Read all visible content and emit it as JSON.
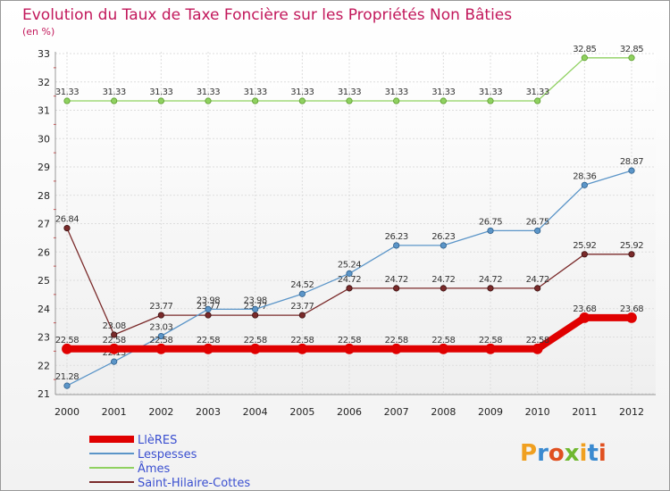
{
  "chart_data": {
    "type": "line",
    "title": "Evolution du Taux de Taxe Foncière sur les Propriétés Non Bâties",
    "subtitle": "(en %)",
    "xlabel": "",
    "ylabel": "",
    "x": [
      2000,
      2001,
      2002,
      2003,
      2004,
      2005,
      2006,
      2007,
      2008,
      2009,
      2010,
      2011,
      2012
    ],
    "ylim": [
      21,
      33
    ],
    "yticks": [
      21,
      22,
      23,
      24,
      25,
      26,
      27,
      28,
      29,
      30,
      31,
      32,
      33
    ],
    "grid": true,
    "legend_position": "bottom-left",
    "series": [
      {
        "name": "LlèRES",
        "color": "#e00000",
        "values": [
          22.58,
          22.58,
          22.58,
          22.58,
          22.58,
          22.58,
          22.58,
          22.58,
          22.58,
          22.58,
          22.58,
          23.68,
          23.68
        ],
        "labels": [
          "22.58",
          "22.58",
          "22.58",
          "22.58",
          "22.58",
          "22.58",
          "22.58",
          "22.58",
          "22.58",
          "22.58",
          "22.58",
          "23.68",
          "23.68"
        ]
      },
      {
        "name": "Lespesses",
        "color": "#5b95c8",
        "values": [
          21.28,
          22.13,
          23.03,
          23.98,
          23.98,
          24.52,
          25.24,
          26.23,
          26.23,
          26.75,
          26.75,
          28.36,
          28.87
        ],
        "labels": [
          "21.28",
          "22.13",
          "23.03",
          "23.98",
          "23.98",
          "24.52",
          "25.24",
          "26.23",
          "26.23",
          "26.75",
          "26.75",
          "28.36",
          "28.87"
        ]
      },
      {
        "name": "Âmes",
        "color": "#8fd160",
        "values": [
          31.33,
          31.33,
          31.33,
          31.33,
          31.33,
          31.33,
          31.33,
          31.33,
          31.33,
          31.33,
          31.33,
          32.85,
          32.85
        ],
        "labels": [
          "31.33",
          "31.33",
          "31.33",
          "31.33",
          "31.33",
          "31.33",
          "31.33",
          "31.33",
          "31.33",
          "31.33",
          "31.33",
          "32.85",
          "32.85"
        ]
      },
      {
        "name": "Saint-Hilaire-Cottes",
        "color": "#7a2a2a",
        "values": [
          26.84,
          23.08,
          23.77,
          23.77,
          23.77,
          23.77,
          24.72,
          24.72,
          24.72,
          24.72,
          24.72,
          25.92,
          25.92
        ],
        "labels": [
          "26.84",
          "23.08",
          "23.77",
          "23.77",
          "23.77",
          "23.77",
          "24.72",
          "24.72",
          "24.72",
          "24.72",
          "24.72",
          "25.92",
          "25.92"
        ]
      }
    ]
  },
  "branding": {
    "logo_text": "Proxiti",
    "logo_colors": [
      "#f0a020",
      "#3a8ad0",
      "#e05020",
      "#70b830"
    ]
  }
}
